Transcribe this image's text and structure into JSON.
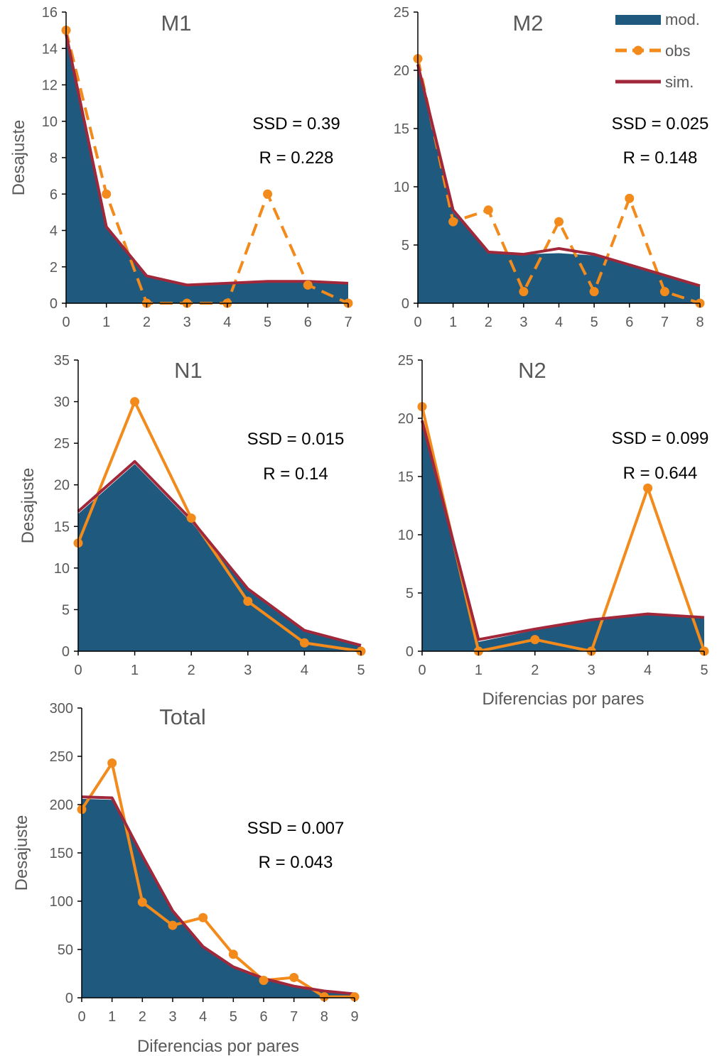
{
  "colors": {
    "mod": "#1f5a7e",
    "obs": "#f28a1c",
    "sim": "#a0283a",
    "axis": "#000000",
    "text": "#595959"
  },
  "legend": {
    "mod": "mod.",
    "obs": "obs",
    "sim": "sim."
  },
  "chart_data": [
    {
      "type": "area",
      "title": "M1",
      "ylabel": "Desajuste",
      "xlabel": "",
      "x": [
        0,
        1,
        2,
        3,
        4,
        5,
        6,
        7
      ],
      "xlim": [
        0,
        7
      ],
      "ylim": [
        0,
        16
      ],
      "yticks": [
        0,
        2,
        4,
        6,
        8,
        10,
        12,
        14,
        16
      ],
      "series": [
        {
          "name": "mod.",
          "values": [
            14.5,
            4.2,
            1.5,
            1.0,
            1.1,
            1.2,
            1.2,
            1.1
          ]
        },
        {
          "name": "obs",
          "style": "dashed",
          "values": [
            15,
            6,
            0,
            0,
            0,
            6,
            1,
            0
          ]
        },
        {
          "name": "sim.",
          "values": [
            14.8,
            4.2,
            1.5,
            1.0,
            1.1,
            1.2,
            1.2,
            1.1
          ]
        }
      ],
      "annotations": [
        "SSD = 0.39",
        "R = 0.228"
      ]
    },
    {
      "type": "area",
      "title": "M2",
      "ylabel": "",
      "xlabel": "",
      "x": [
        0,
        1,
        2,
        3,
        4,
        5,
        6,
        7,
        8
      ],
      "xlim": [
        0,
        8
      ],
      "ylim": [
        0,
        25
      ],
      "yticks": [
        0,
        5,
        10,
        15,
        20,
        25
      ],
      "series": [
        {
          "name": "mod.",
          "values": [
            20.5,
            7.8,
            4.4,
            4.2,
            4.3,
            4.1,
            3.3,
            2.4,
            1.5
          ]
        },
        {
          "name": "obs",
          "style": "dashed",
          "values": [
            21,
            7,
            8,
            1,
            7,
            1,
            9,
            1,
            0
          ]
        },
        {
          "name": "sim.",
          "values": [
            20.5,
            8.0,
            4.4,
            4.2,
            4.7,
            4.2,
            3.3,
            2.4,
            1.5
          ]
        }
      ],
      "annotations": [
        "SSD = 0.025",
        "R = 0.148"
      ]
    },
    {
      "type": "area",
      "title": "N1",
      "ylabel": "Desajuste",
      "xlabel": "",
      "x": [
        0,
        1,
        2,
        3,
        4,
        5
      ],
      "xlim": [
        0,
        5
      ],
      "ylim": [
        0,
        35
      ],
      "yticks": [
        0,
        5,
        10,
        15,
        20,
        25,
        30,
        35
      ],
      "series": [
        {
          "name": "mod.",
          "values": [
            16.5,
            22.5,
            15.5,
            7.3,
            2.4,
            0.6
          ]
        },
        {
          "name": "obs",
          "style": "solid",
          "values": [
            13,
            30,
            16,
            6,
            1,
            0
          ]
        },
        {
          "name": "sim.",
          "values": [
            16.8,
            22.8,
            15.8,
            7.5,
            2.5,
            0.7
          ]
        }
      ],
      "annotations": [
        "SSD = 0.015",
        "R = 0.14"
      ]
    },
    {
      "type": "area",
      "title": "N2",
      "ylabel": "",
      "xlabel": "Diferencias por pares",
      "x": [
        0,
        1,
        2,
        3,
        4,
        5
      ],
      "xlim": [
        0,
        5
      ],
      "ylim": [
        0,
        25
      ],
      "yticks": [
        0,
        5,
        10,
        15,
        20,
        25
      ],
      "series": [
        {
          "name": "mod.",
          "values": [
            19.5,
            0.8,
            1.8,
            2.6,
            3.1,
            2.8
          ]
        },
        {
          "name": "obs",
          "style": "solid",
          "values": [
            21,
            0,
            1,
            0,
            14,
            0
          ]
        },
        {
          "name": "sim.",
          "values": [
            19.8,
            1.0,
            1.9,
            2.7,
            3.2,
            2.9
          ]
        }
      ],
      "annotations": [
        "SSD = 0.099",
        "R = 0.644"
      ]
    },
    {
      "type": "area",
      "title": "Total",
      "ylabel": "Desajuste",
      "xlabel": "Diferencias por pares",
      "x": [
        0,
        1,
        2,
        3,
        4,
        5,
        6,
        7,
        8,
        9
      ],
      "xlim": [
        0,
        9
      ],
      "ylim": [
        0,
        300
      ],
      "yticks": [
        0,
        50,
        100,
        150,
        200,
        250,
        300
      ],
      "series": [
        {
          "name": "mod.",
          "values": [
            206,
            205,
            145,
            88,
            52,
            31,
            19,
            11,
            7,
            4
          ]
        },
        {
          "name": "obs",
          "style": "solid",
          "values": [
            195,
            243,
            99,
            75,
            83,
            45,
            18,
            21,
            1,
            1
          ]
        },
        {
          "name": "sim.",
          "values": [
            208,
            207,
            147,
            90,
            53,
            32,
            20,
            12,
            7,
            4
          ]
        }
      ],
      "annotations": [
        "SSD = 0.007",
        "R = 0.043"
      ]
    }
  ]
}
